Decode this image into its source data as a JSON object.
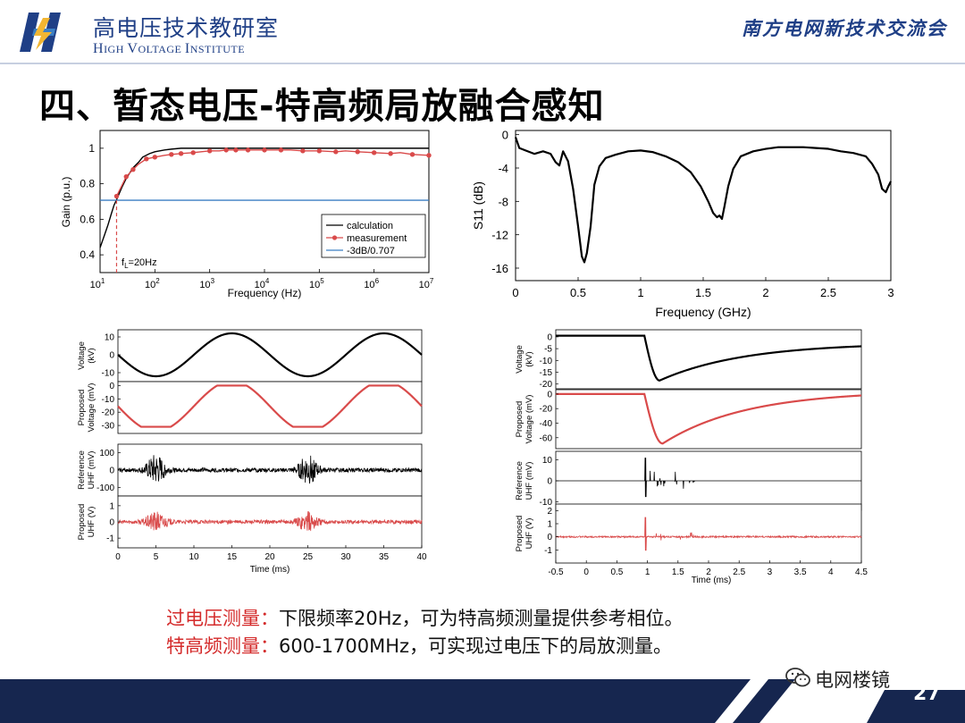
{
  "header": {
    "institute_cn": "高电压技术教研室",
    "institute_en_parts": [
      {
        "big": "H",
        "small": "IGH "
      },
      {
        "big": "V",
        "small": "OLTAGE "
      },
      {
        "big": "I",
        "small": "NSTITUTE"
      }
    ],
    "conference": "南方电网新技术交流会"
  },
  "slide": {
    "title": "四、暂态电压-特高频局放融合感知",
    "page_number": "27",
    "watermark": "电网楼镜"
  },
  "notes": [
    {
      "label": "过电压测量：",
      "text": "下限频率20Hz，可为特高频测量提供参考相位。"
    },
    {
      "label": "特高频测量：",
      "text": "600-1700MHz，可实现过电压下的局放测量。"
    }
  ],
  "colors": {
    "brand_blue": "#1f3f86",
    "footer_navy": "#16264f",
    "measurement_red": "#d94a4a",
    "reference_blue": "#3b7fc4",
    "label_red": "#d42b2b"
  },
  "chart_data": [
    {
      "type": "line",
      "id": "gain",
      "xscale": "log",
      "xlim": [
        10,
        10000000
      ],
      "ylim": [
        0.3,
        1.1
      ],
      "xlabel": "Frequency (Hz)",
      "ylabel": "Gain (p.u.)",
      "xticks": [
        10,
        100,
        1000,
        10000,
        100000,
        1000000,
        10000000
      ],
      "xtick_labels": [
        [
          "10",
          "1"
        ],
        [
          "10",
          "2"
        ],
        [
          "10",
          "3"
        ],
        [
          "10",
          "4"
        ],
        [
          "10",
          "5"
        ],
        [
          "10",
          "6"
        ],
        [
          "10",
          "7"
        ]
      ],
      "yticks": [
        0.4,
        0.6,
        0.8,
        1
      ],
      "ytick_labels": [
        "0.4",
        "0.6",
        "0.8",
        "1"
      ],
      "legend": {
        "placement": "bottom-right",
        "entries": [
          "calculation",
          "measurement",
          "-3dB/0.707"
        ]
      },
      "annotation": {
        "text_main": "f",
        "text_sub": "L",
        "text_rest": "=20Hz",
        "x": 20
      },
      "series": [
        {
          "name": "calculation",
          "color": "#000000",
          "x": [
            10,
            12,
            14,
            16,
            18,
            20,
            25,
            30,
            40,
            50,
            60,
            80,
            100,
            150,
            200,
            300,
            500,
            1000,
            3000,
            10000,
            100000,
            1000000,
            10000000
          ],
          "y": [
            0.44,
            0.51,
            0.57,
            0.63,
            0.68,
            0.71,
            0.78,
            0.83,
            0.89,
            0.92,
            0.95,
            0.97,
            0.98,
            0.99,
            0.995,
            1.0,
            1.0,
            1.0,
            1.0,
            1.0,
            1.0,
            1.0,
            1.0
          ]
        },
        {
          "name": "measurement",
          "color": "#d94a4a",
          "x": [
            20,
            25,
            30,
            40,
            50,
            70,
            100,
            150,
            200,
            300,
            500,
            700,
            1000,
            1500,
            2000,
            3000,
            5000,
            7000,
            10000,
            20000,
            30000,
            50000,
            100000,
            200000,
            300000,
            500000,
            1000000,
            2000000,
            3000000,
            5000000,
            10000000
          ],
          "y": [
            0.73,
            0.79,
            0.84,
            0.88,
            0.91,
            0.94,
            0.95,
            0.96,
            0.965,
            0.97,
            0.975,
            0.98,
            0.985,
            0.985,
            0.99,
            0.99,
            0.99,
            0.99,
            0.99,
            0.99,
            0.99,
            0.985,
            0.985,
            0.98,
            0.985,
            0.98,
            0.975,
            0.97,
            0.975,
            0.965,
            0.96
          ],
          "marker_x": [
            20,
            30,
            40,
            70,
            100,
            200,
            300,
            500,
            1000,
            2000,
            3000,
            5000,
            10000,
            20000,
            50000,
            100000,
            200000,
            500000,
            1000000,
            2000000,
            5000000,
            10000000
          ]
        },
        {
          "name": "-3dB/0.707",
          "color": "#3b7fc4",
          "x": [
            10,
            10000000
          ],
          "y": [
            0.707,
            0.707
          ]
        }
      ]
    },
    {
      "type": "line",
      "id": "s11",
      "xlim": [
        0,
        3
      ],
      "ylim": [
        -17.5,
        0.5
      ],
      "xlabel": "Frequency (GHz)",
      "ylabel": "S11 (dB)",
      "xticks": [
        0,
        0.5,
        1,
        1.5,
        2,
        2.5,
        3
      ],
      "xtick_labels": [
        "0",
        "0.5",
        "1",
        "1.5",
        "2",
        "2.5",
        "3"
      ],
      "yticks": [
        0,
        -4,
        -8,
        -12,
        -16
      ],
      "ytick_labels": [
        "0",
        "-4",
        "-8",
        "-12",
        "-16"
      ],
      "series": [
        {
          "name": "",
          "color": "#000000",
          "x": [
            0,
            0.03,
            0.08,
            0.15,
            0.22,
            0.28,
            0.32,
            0.35,
            0.38,
            0.42,
            0.46,
            0.5,
            0.53,
            0.55,
            0.57,
            0.6,
            0.63,
            0.67,
            0.72,
            0.8,
            0.9,
            1.0,
            1.1,
            1.2,
            1.3,
            1.4,
            1.48,
            1.54,
            1.58,
            1.61,
            1.63,
            1.65,
            1.67,
            1.7,
            1.74,
            1.8,
            1.9,
            2.0,
            2.1,
            2.2,
            2.3,
            2.4,
            2.5,
            2.6,
            2.7,
            2.8,
            2.85,
            2.9,
            2.93,
            2.96,
            2.98,
            3.0
          ],
          "y": [
            -0.3,
            -1.6,
            -1.9,
            -2.3,
            -2.0,
            -2.3,
            -3.3,
            -3.7,
            -2.0,
            -3.2,
            -6.5,
            -11.0,
            -14.6,
            -15.3,
            -14.2,
            -11.0,
            -6.0,
            -3.8,
            -2.8,
            -2.4,
            -2.0,
            -1.9,
            -2.1,
            -2.6,
            -3.3,
            -4.5,
            -6.2,
            -8.0,
            -9.4,
            -9.9,
            -9.7,
            -10.1,
            -8.6,
            -6.2,
            -4.1,
            -2.6,
            -2.0,
            -1.7,
            -1.5,
            -1.5,
            -1.5,
            -1.6,
            -1.7,
            -2.0,
            -2.2,
            -2.6,
            -3.5,
            -4.8,
            -6.5,
            -6.9,
            -6.2,
            -5.6
          ]
        }
      ]
    },
    {
      "type": "line",
      "id": "stack-left",
      "xlim": [
        0,
        40
      ],
      "xlabel": "Time (ms)",
      "xticks": [
        0,
        5,
        10,
        15,
        20,
        25,
        30,
        35,
        40
      ],
      "xtick_labels": [
        "0",
        "5",
        "10",
        "15",
        "20",
        "25",
        "30",
        "35",
        "40"
      ],
      "panels": [
        {
          "ylabel1": "Voltage",
          "ylabel2": "(kV)",
          "ylim": [
            -15,
            14
          ],
          "yticks": [
            10,
            0,
            -10
          ],
          "ytick_labels": [
            "10",
            "0",
            "-10"
          ],
          "color": "#000000",
          "kind": "sine",
          "amplitude": 12,
          "period": 20,
          "trough_at": 5
        },
        {
          "ylabel1": "Proposed",
          "ylabel2": "Voltage (mV)",
          "ylim": [
            -36,
            3
          ],
          "yticks": [
            0,
            -10,
            -20,
            -30
          ],
          "ytick_labels": [
            "0",
            "-10",
            "-20",
            "-30"
          ],
          "color": "#d94a4a",
          "kind": "clipped-sine",
          "low": -31,
          "high": 0,
          "period": 20,
          "trough_at": 5
        },
        {
          "ylabel1": "Reference",
          "ylabel2": "UHF (mV)",
          "ylim": [
            -150,
            150
          ],
          "yticks": [
            100,
            0,
            -100
          ],
          "ytick_labels": [
            "100",
            "0",
            "-100"
          ],
          "color": "#000000",
          "kind": "burst",
          "noise": 12,
          "burst_peak": 80,
          "burst_centers": [
            5,
            25
          ],
          "burst_width": 1.2
        },
        {
          "ylabel1": "Proposed",
          "ylabel2": "UHF (V)",
          "ylim": [
            -1.6,
            1.6
          ],
          "yticks": [
            1,
            0,
            -1
          ],
          "ytick_labels": [
            "1",
            "0",
            "-1"
          ],
          "color": "#d94a4a",
          "kind": "burst",
          "noise": 0.12,
          "burst_peak": 0.55,
          "burst_centers": [
            5,
            25
          ],
          "burst_width": 1.3
        }
      ]
    },
    {
      "type": "line",
      "id": "stack-right",
      "xlim": [
        -0.5,
        4.5
      ],
      "xlabel": "Time (ms)",
      "xticks": [
        -0.5,
        0,
        0.5,
        1,
        1.5,
        2,
        2.5,
        3,
        3.5,
        4,
        4.5
      ],
      "xtick_labels": [
        "-0.5",
        "0",
        "0.5",
        "1",
        "1.5",
        "2",
        "2.5",
        "3",
        "3.5",
        "4",
        "4.5"
      ],
      "panels": [
        {
          "ylabel1": "Voltage",
          "ylabel2": "(kV)",
          "ylim": [
            -22,
            3
          ],
          "yticks": [
            0,
            -5,
            -10,
            -15,
            -20
          ],
          "ytick_labels": [
            "0",
            "-5",
            "-10",
            "-15",
            "-20"
          ],
          "color": "#000000",
          "kind": "impulse",
          "base": 0.5,
          "t0": 0.95,
          "min_t": 1.2,
          "min_v": -18.5,
          "end_v": -4
        },
        {
          "ylabel1": "Proposed",
          "ylabel2": "Voltage (mV)",
          "ylim": [
            -75,
            6
          ],
          "yticks": [
            0,
            -20,
            -40,
            -60
          ],
          "ytick_labels": [
            "0",
            "-20",
            "-40",
            "-60"
          ],
          "color": "#d94a4a",
          "kind": "impulse",
          "base": 0,
          "t0": 0.95,
          "min_t": 1.25,
          "min_v": -68,
          "end_v": -2
        },
        {
          "ylabel1": "Reference",
          "ylabel2": "UHF (mV)",
          "ylim": [
            -14,
            14
          ],
          "yticks": [
            10,
            0,
            -10
          ],
          "ytick_labels": [
            "10",
            "0",
            "-10"
          ],
          "color": "#000000",
          "kind": "pd",
          "spike_t": 0.97,
          "spike": 11,
          "burst_start": 1.0,
          "burst_end": 1.85,
          "burst_amp": 5
        },
        {
          "ylabel1": "Proposed",
          "ylabel2": "UHF (V)",
          "ylim": [
            -2,
            2.5
          ],
          "yticks": [
            2,
            1,
            0,
            -1
          ],
          "ytick_labels": [
            "2",
            "1",
            "0",
            "-1"
          ],
          "color": "#d94a4a",
          "kind": "pd",
          "spike_t": 0.97,
          "spike": 1.5,
          "burst_start": 1.0,
          "burst_end": 1.85,
          "burst_amp": 0.45,
          "noise": 0.06
        }
      ]
    }
  ]
}
